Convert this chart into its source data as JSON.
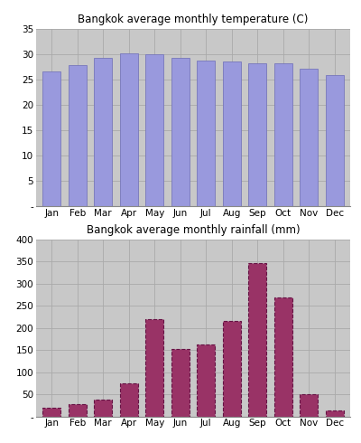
{
  "months": [
    "Jan",
    "Feb",
    "Mar",
    "Apr",
    "May",
    "Jun",
    "Jul",
    "Aug",
    "Sep",
    "Oct",
    "Nov",
    "Dec"
  ],
  "temperature": [
    26.5,
    27.8,
    29.2,
    30.1,
    29.9,
    29.2,
    28.8,
    28.5,
    28.1,
    28.1,
    27.2,
    25.9
  ],
  "rainfall": [
    20,
    28,
    37,
    75,
    220,
    152,
    163,
    215,
    347,
    268,
    50,
    13
  ],
  "temp_bar_color": "#9999dd",
  "rain_bar_color": "#993366",
  "temp_title": "Bangkok average monthly temperature (C)",
  "rain_title": "Bangkok average monthly rainfall (mm)",
  "temp_ylim": [
    0,
    35
  ],
  "temp_yticks": [
    0,
    5,
    10,
    15,
    20,
    25,
    30,
    35
  ],
  "rain_ylim": [
    0,
    400
  ],
  "rain_yticks": [
    0,
    50,
    100,
    150,
    200,
    250,
    300,
    350,
    400
  ],
  "plot_bg_color": "#c8c8c8",
  "fig_bg_color": "#ffffff",
  "grid_color": "#aaaaaa",
  "bar_width": 0.7
}
